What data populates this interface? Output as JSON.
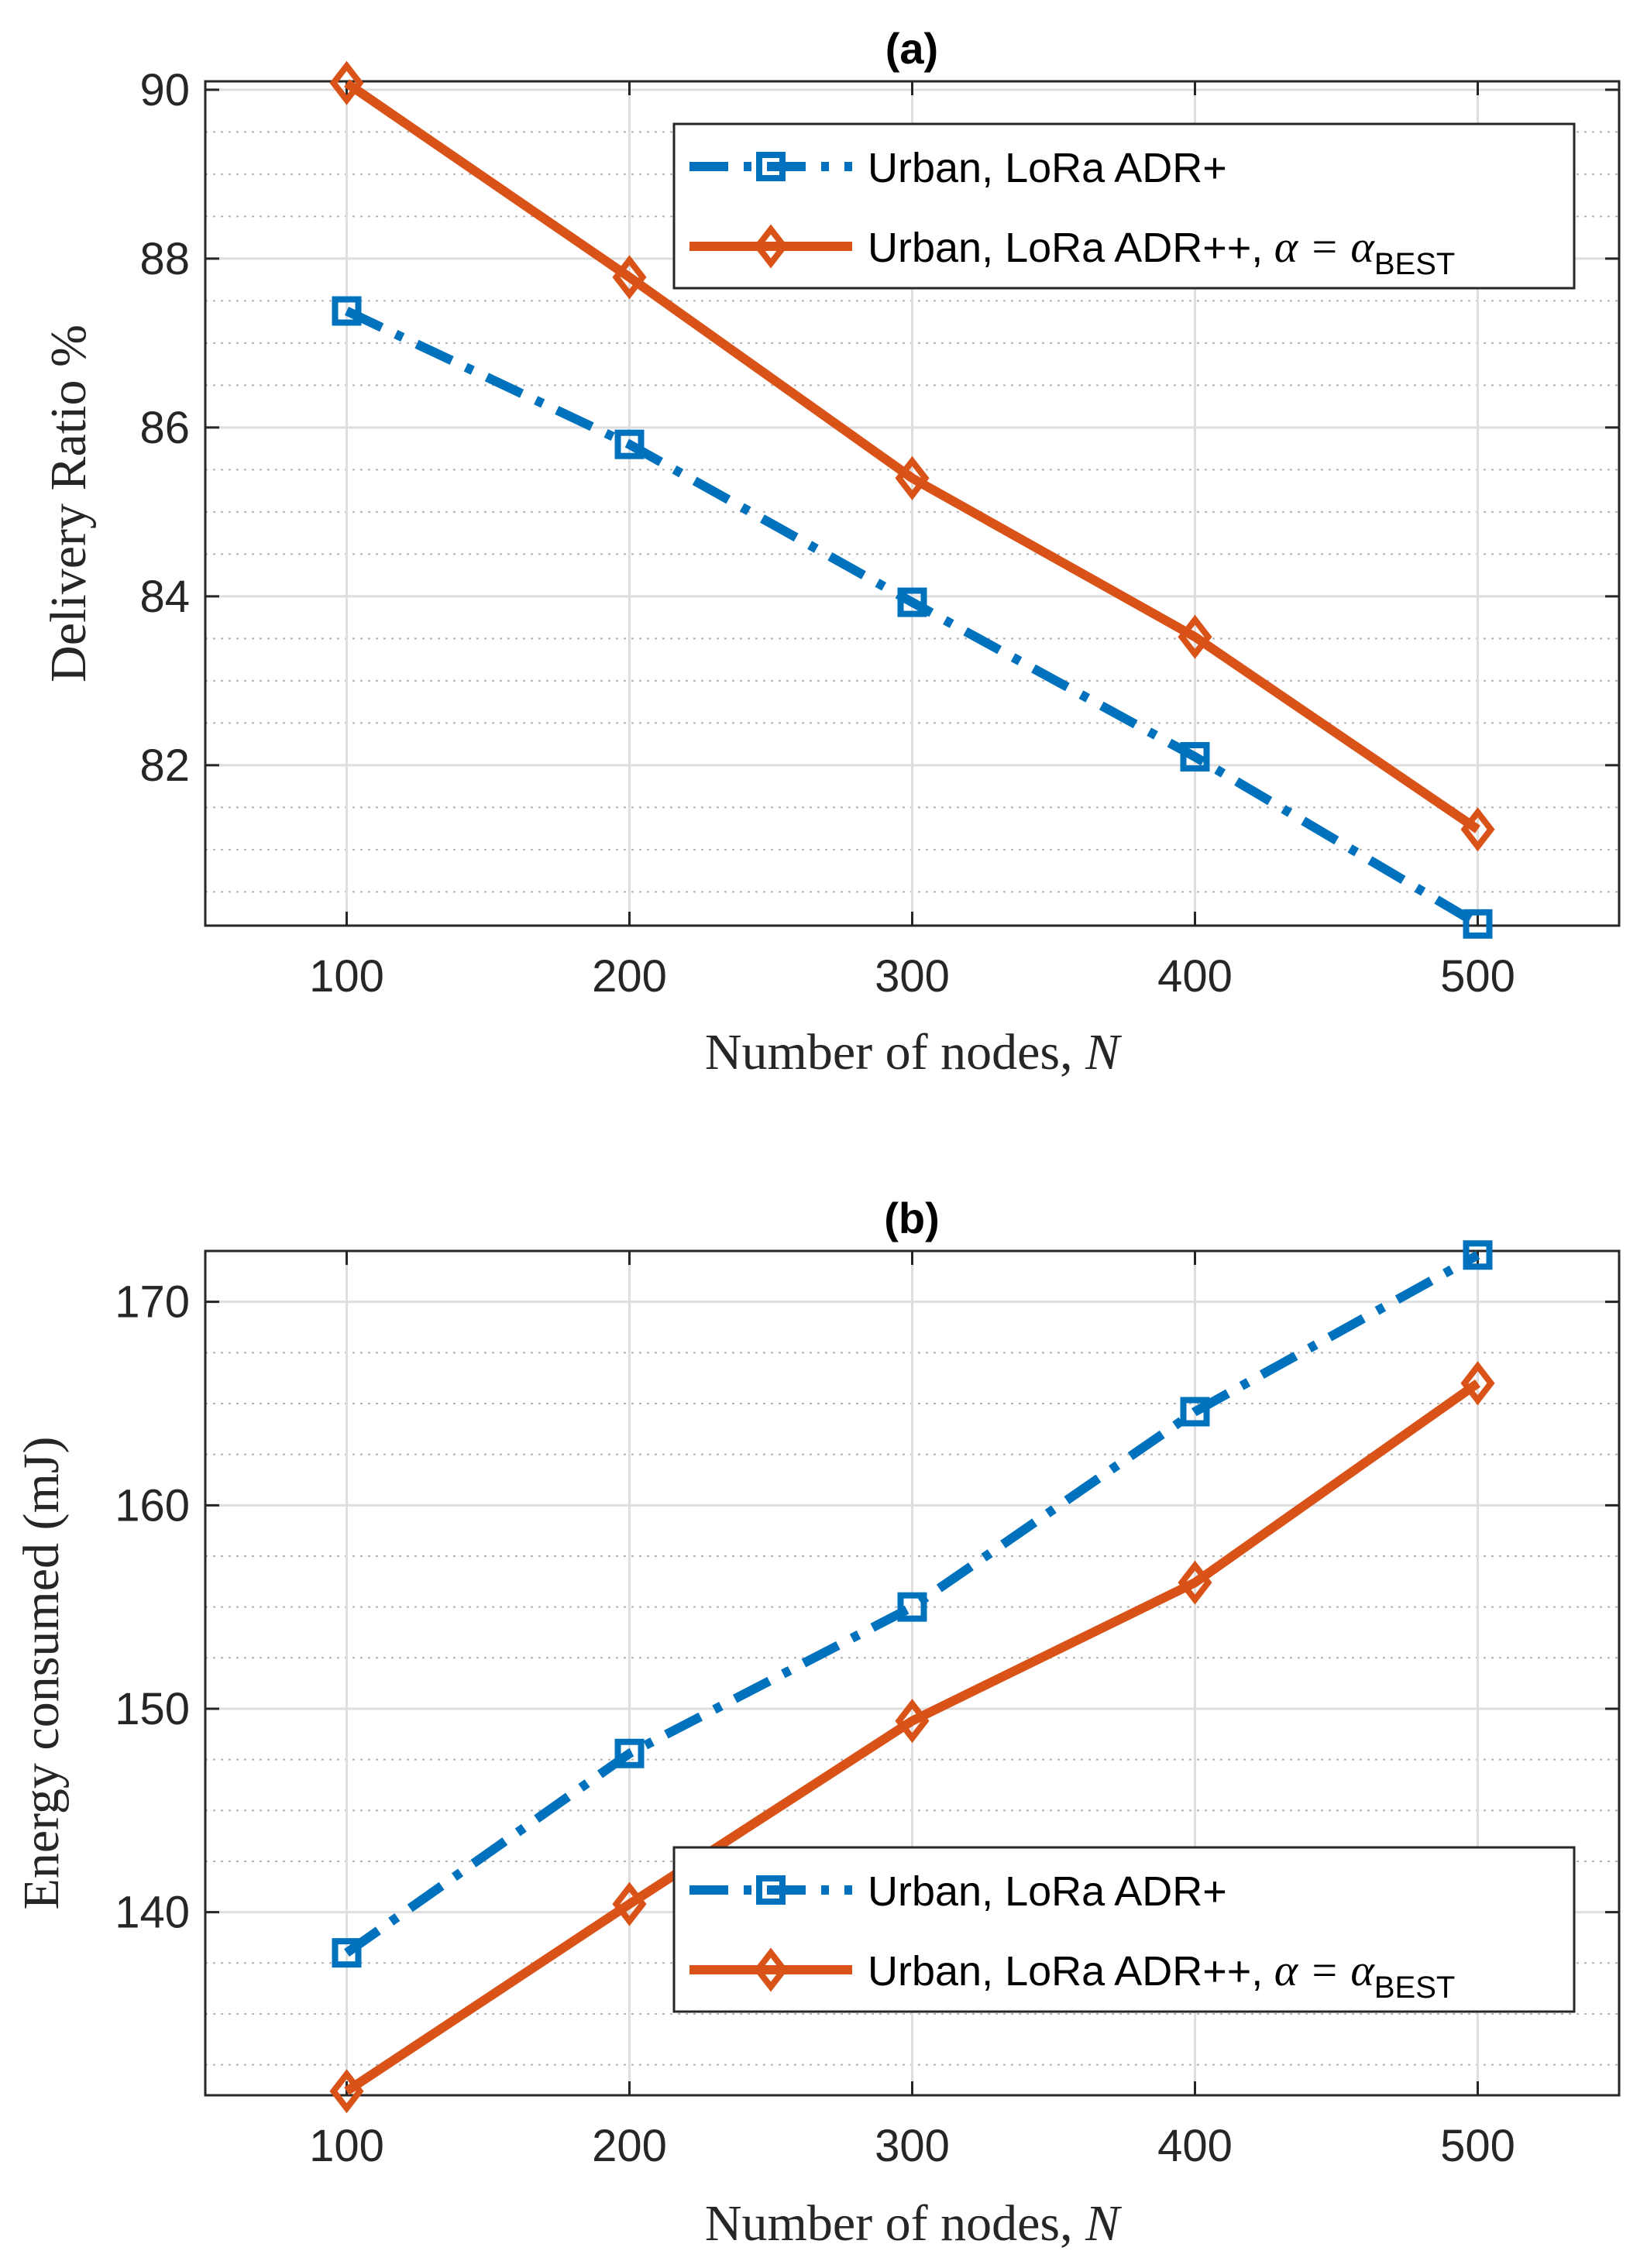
{
  "chart_data": [
    {
      "type": "line",
      "title": "(a)",
      "xlabel": "Number of nodes,",
      "xlabel_var": "N",
      "ylabel": "Delivery Ratio %",
      "x": [
        100,
        200,
        300,
        400,
        500
      ],
      "xlim": [
        50,
        550
      ],
      "ylim": [
        80.1,
        90.1
      ],
      "xticks": [
        100,
        200,
        300,
        400,
        500
      ],
      "yticks": [
        82,
        84,
        86,
        88,
        90
      ],
      "grid": true,
      "minor_grid": true,
      "legend_position": "top-right",
      "series": [
        {
          "name": "Urban, LoRa ADR+",
          "style": "dash-dot",
          "marker": "square",
          "color": "#0072bd",
          "values": [
            87.38,
            85.8,
            83.93,
            82.1,
            80.12
          ]
        },
        {
          "name": "Urban, LoRa ADR++,",
          "name_math": "α = α",
          "name_sub": "BEST",
          "style": "solid",
          "marker": "diamond",
          "color": "#d95319",
          "values": [
            90.08,
            87.78,
            85.4,
            83.52,
            81.24
          ]
        }
      ]
    },
    {
      "type": "line",
      "title": "(b)",
      "xlabel": "Number of nodes,",
      "xlabel_var": "N",
      "ylabel": "Energy consumed (mJ)",
      "x": [
        100,
        200,
        300,
        400,
        500
      ],
      "xlim": [
        50,
        550
      ],
      "ylim": [
        131,
        172.5
      ],
      "xticks": [
        100,
        200,
        300,
        400,
        500
      ],
      "yticks": [
        140,
        150,
        160,
        170
      ],
      "grid": true,
      "minor_grid": true,
      "legend_position": "bottom-right",
      "series": [
        {
          "name": "Urban, LoRa ADR+",
          "style": "dash-dot",
          "marker": "square",
          "color": "#0072bd",
          "values": [
            138,
            147.8,
            155,
            164.6,
            172.3
          ]
        },
        {
          "name": "Urban, LoRa ADR++,",
          "name_math": "α = α",
          "name_sub": "BEST",
          "style": "solid",
          "marker": "diamond",
          "color": "#d95319",
          "values": [
            131.2,
            140.4,
            149.4,
            156.2,
            166
          ]
        }
      ]
    }
  ]
}
